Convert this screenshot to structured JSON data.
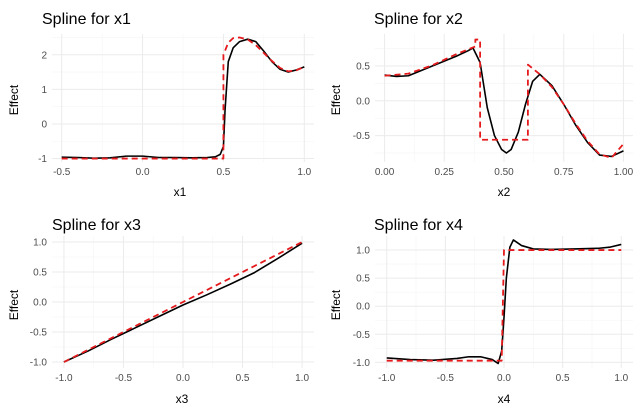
{
  "colors": {
    "background": "#ffffff",
    "grid_major": "#ebebeb",
    "grid_minor": "#f5f5f5",
    "tick_label": "#4d4d4d",
    "text": "#000000",
    "estimate_line": "#000000",
    "true_line": "#e41a1c"
  },
  "chart_data": [
    {
      "type": "line",
      "title": "Spline for x1",
      "xlabel": "x1",
      "ylabel": "Effect",
      "xlim": [
        -0.56,
        1.06
      ],
      "ylim": [
        -1.1,
        2.6
      ],
      "xticks": [
        -0.5,
        0.0,
        0.5,
        1.0
      ],
      "xtick_labels": [
        "-0.5",
        "0.0",
        "0.5",
        "1.0"
      ],
      "yticks": [
        -1,
        0,
        1,
        2
      ],
      "ytick_labels": [
        "-1",
        "0",
        "1",
        "2"
      ],
      "grid": true,
      "series": [
        {
          "style": "solid",
          "color": "#000000",
          "x": [
            -0.5,
            -0.4,
            -0.3,
            -0.2,
            -0.1,
            0.0,
            0.1,
            0.2,
            0.3,
            0.4,
            0.45,
            0.48,
            0.5,
            0.51,
            0.53,
            0.56,
            0.6,
            0.65,
            0.7,
            0.75,
            0.8,
            0.85,
            0.9,
            0.95,
            1.0
          ],
          "y": [
            -0.96,
            -0.97,
            -0.99,
            -0.98,
            -0.93,
            -0.93,
            -0.97,
            -0.97,
            -0.98,
            -0.97,
            -0.95,
            -0.88,
            -0.65,
            0.4,
            1.8,
            2.2,
            2.38,
            2.45,
            2.38,
            2.1,
            1.8,
            1.58,
            1.5,
            1.56,
            1.65
          ]
        },
        {
          "style": "dashed",
          "color": "#e41a1c",
          "x": [
            -0.5,
            -0.3,
            -0.1,
            0.1,
            0.3,
            0.4999,
            0.5,
            0.53,
            0.56,
            0.6,
            0.65,
            0.7,
            0.75,
            0.8,
            0.85,
            0.9,
            0.95,
            1.0
          ],
          "y": [
            -1.0,
            -1.0,
            -1.0,
            -1.0,
            -1.0,
            -1.0,
            2.0,
            2.35,
            2.48,
            2.5,
            2.44,
            2.28,
            2.05,
            1.82,
            1.62,
            1.52,
            1.55,
            1.65
          ]
        }
      ]
    },
    {
      "type": "line",
      "title": "Spline for x2",
      "xlabel": "x2",
      "ylabel": "Effect",
      "xlim": [
        -0.04,
        1.04
      ],
      "ylim": [
        -0.88,
        0.96
      ],
      "xticks": [
        0.0,
        0.25,
        0.5,
        0.75,
        1.0
      ],
      "xtick_labels": [
        "0.00",
        "0.25",
        "0.50",
        "0.75",
        "1.00"
      ],
      "yticks": [
        -0.5,
        0.0,
        0.5
      ],
      "ytick_labels": [
        "-0.5",
        "0.0",
        "0.5"
      ],
      "grid": true,
      "series": [
        {
          "style": "solid",
          "color": "#000000",
          "x": [
            0.0,
            0.05,
            0.1,
            0.15,
            0.2,
            0.25,
            0.3,
            0.35,
            0.37,
            0.4,
            0.43,
            0.46,
            0.49,
            0.51,
            0.53,
            0.56,
            0.59,
            0.62,
            0.65,
            0.7,
            0.75,
            0.8,
            0.85,
            0.9,
            0.95,
            1.0
          ],
          "y": [
            0.37,
            0.35,
            0.36,
            0.43,
            0.5,
            0.57,
            0.64,
            0.72,
            0.76,
            0.55,
            -0.1,
            -0.5,
            -0.7,
            -0.75,
            -0.7,
            -0.45,
            -0.05,
            0.28,
            0.38,
            0.22,
            -0.05,
            -0.35,
            -0.6,
            -0.78,
            -0.8,
            -0.72
          ]
        },
        {
          "style": "dashed",
          "color": "#e41a1c",
          "x": [
            0.0,
            0.1,
            0.2,
            0.3,
            0.38,
            0.3801,
            0.4,
            0.4001,
            0.5,
            0.6,
            0.6001,
            0.65,
            0.7,
            0.75,
            0.8,
            0.85,
            0.9,
            0.95,
            1.0
          ],
          "y": [
            0.36,
            0.39,
            0.51,
            0.67,
            0.78,
            0.88,
            0.88,
            -0.56,
            -0.56,
            -0.56,
            0.52,
            0.38,
            0.2,
            -0.05,
            -0.33,
            -0.58,
            -0.77,
            -0.82,
            -0.62
          ]
        }
      ]
    },
    {
      "type": "line",
      "title": "Spline for x3",
      "xlabel": "x3",
      "ylabel": "Effect",
      "xlim": [
        -1.1,
        1.1
      ],
      "ylim": [
        -1.1,
        1.1
      ],
      "xticks": [
        -1.0,
        -0.5,
        0.0,
        0.5,
        1.0
      ],
      "xtick_labels": [
        "-1.0",
        "-0.5",
        "0.0",
        "0.5",
        "1.0"
      ],
      "yticks": [
        -1.0,
        -0.5,
        0.0,
        0.5,
        1.0
      ],
      "ytick_labels": [
        "-1.0",
        "-0.5",
        "0.0",
        "0.5",
        "1.0"
      ],
      "grid": true,
      "series": [
        {
          "style": "solid",
          "color": "#000000",
          "x": [
            -1.0,
            -0.8,
            -0.6,
            -0.4,
            -0.2,
            0.0,
            0.2,
            0.4,
            0.6,
            0.8,
            1.0
          ],
          "y": [
            -1.0,
            -0.82,
            -0.62,
            -0.43,
            -0.24,
            -0.05,
            0.12,
            0.3,
            0.49,
            0.73,
            0.98
          ]
        },
        {
          "style": "dashed",
          "color": "#e41a1c",
          "x": [
            -1.0,
            1.0
          ],
          "y": [
            -1.0,
            1.0
          ]
        }
      ]
    },
    {
      "type": "line",
      "title": "Spline for x4",
      "xlabel": "x4",
      "ylabel": "Effect",
      "xlim": [
        -1.1,
        1.1
      ],
      "ylim": [
        -1.1,
        1.25
      ],
      "xticks": [
        -1.0,
        -0.5,
        0.0,
        0.5,
        1.0
      ],
      "xtick_labels": [
        "-1.0",
        "-0.5",
        "0.0",
        "0.5",
        "1.0"
      ],
      "yticks": [
        -1.0,
        -0.5,
        0.0,
        0.5,
        1.0
      ],
      "ytick_labels": [
        "-1.0",
        "-0.5",
        "0.0",
        "0.5",
        "1.0"
      ],
      "grid": true,
      "series": [
        {
          "style": "solid",
          "color": "#000000",
          "x": [
            -1.0,
            -0.8,
            -0.6,
            -0.4,
            -0.3,
            -0.2,
            -0.1,
            -0.05,
            -0.02,
            0.0,
            0.02,
            0.05,
            0.08,
            0.15,
            0.25,
            0.4,
            0.6,
            0.8,
            0.9,
            1.0
          ],
          "y": [
            -0.92,
            -0.95,
            -0.96,
            -0.93,
            -0.9,
            -0.9,
            -0.95,
            -1.02,
            -0.8,
            -0.2,
            0.5,
            1.05,
            1.18,
            1.08,
            1.02,
            1.01,
            1.02,
            1.03,
            1.05,
            1.1
          ]
        },
        {
          "style": "dashed",
          "color": "#e41a1c",
          "x": [
            -1.0,
            -0.5,
            -0.02,
            -0.0199,
            0.0,
            0.0001,
            0.5,
            1.0
          ],
          "y": [
            -0.97,
            -0.97,
            -0.97,
            -0.97,
            1.0,
            1.0,
            1.0,
            1.0
          ]
        }
      ]
    }
  ]
}
